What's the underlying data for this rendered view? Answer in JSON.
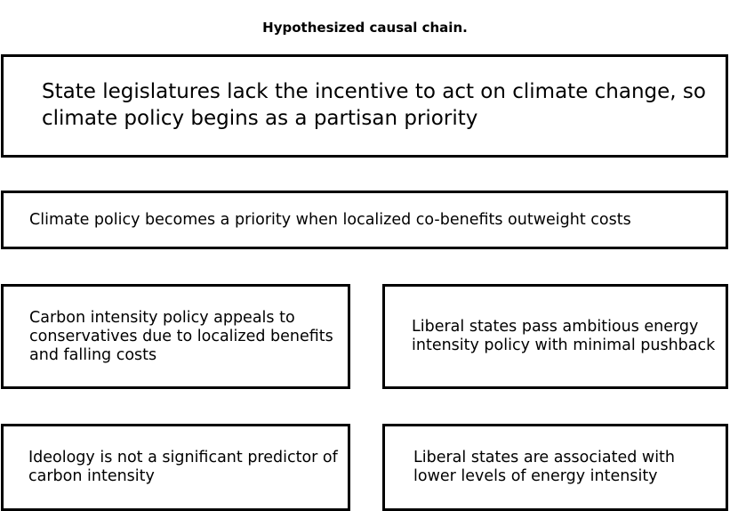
{
  "title": "Hypothesized causal chain.",
  "boxes": {
    "legislatures": "State legislatures lack the incentive to act on climate change, so climate policy begins as a partisan priority",
    "co_benefits": "Climate policy becomes a priority when localized co-benefits outweight costs",
    "carbon_policy": "Carbon intensity policy appeals to conservatives due to localized benefits and falling costs",
    "energy_policy": "Liberal states pass ambitious energy intensity policy with minimal pushback",
    "ideology": "Ideology is not a significant predictor of carbon intensity",
    "liberal_energy": "Liberal states are associated with lower levels of energy intensity"
  }
}
